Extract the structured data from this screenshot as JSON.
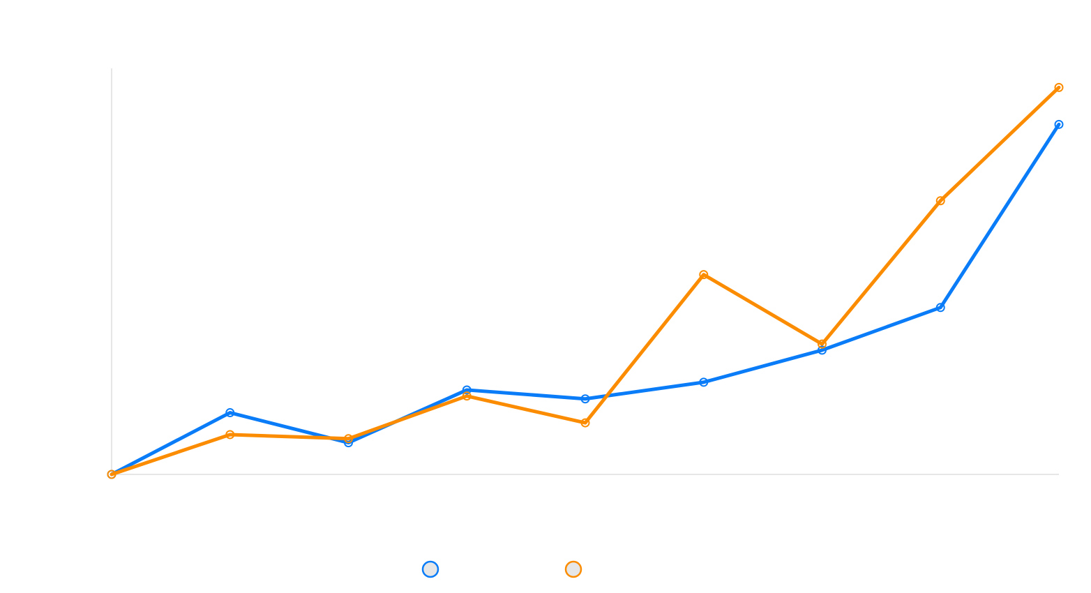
{
  "chart_data": {
    "type": "line",
    "x": [
      0,
      1,
      2,
      3,
      4,
      5,
      6,
      7,
      8
    ],
    "ylim": [
      0,
      100
    ],
    "grid": false,
    "legend_position": "bottom-center",
    "series": [
      {
        "name": "",
        "color": "#0a7cf7",
        "values": [
          0,
          15.2,
          7.8,
          20.8,
          18.6,
          22.7,
          30.6,
          41.1,
          86.2
        ]
      },
      {
        "name": "",
        "color": "#fb8c00",
        "values": [
          0,
          9.8,
          8.8,
          19.3,
          12.7,
          49.2,
          32.1,
          67.4,
          95.3
        ]
      }
    ]
  }
}
